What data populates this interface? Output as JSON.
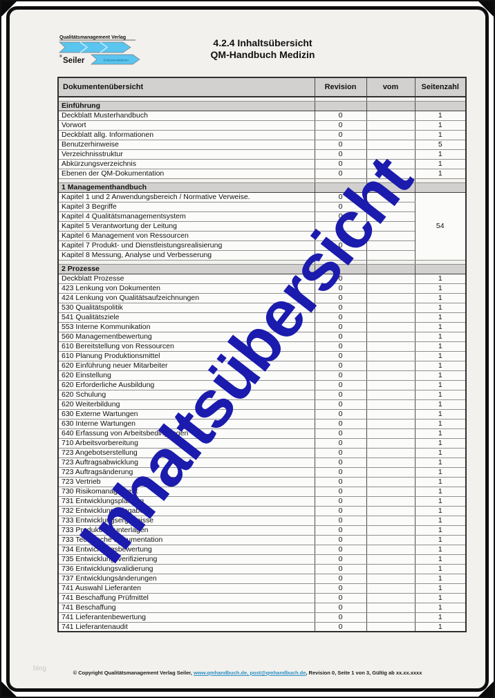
{
  "page": {
    "title_line1": "4.2.4 Inhaltsübersicht",
    "title_line2": "QM-Handbuch Medizin",
    "watermark": "Inhaltsübersicht",
    "blog_label": "blog"
  },
  "logo": {
    "line1": "Qualitätsmanagement Verlag",
    "registered": "®",
    "name": "Seiler",
    "tagline": "Dokumentationen",
    "arrow_color": "#5ac5ef"
  },
  "table": {
    "headers": [
      "Dokumentenübersicht",
      "Revision",
      "vom",
      "Seitenzahl"
    ],
    "sections": [
      {
        "title": "Einführung",
        "rows": [
          [
            "Deckblatt Musterhandbuch",
            "0",
            "",
            "1"
          ],
          [
            "Vorwort",
            "0",
            "",
            "1"
          ],
          [
            "Deckblatt allg. Informationen",
            "0",
            "",
            "1"
          ],
          [
            "Benutzerhinweise",
            "0",
            "",
            "5"
          ],
          [
            "Verzeichnisstruktur",
            "0",
            "",
            "1"
          ],
          [
            "Abkürzungsverzeichnis",
            "0",
            "",
            "1"
          ],
          [
            "Ebenen der QM-Dokumentation",
            "0",
            "",
            "1"
          ]
        ]
      },
      {
        "title": "1 Managementhandbuch",
        "seiten_merged": "54",
        "rows": [
          [
            "Kapitel 1 und 2 Anwendungsbereich / Normative Verweise.",
            "0",
            ""
          ],
          [
            "Kapitel 3 Begriffe",
            "0",
            ""
          ],
          [
            "Kapitel 4 Qualitätsmanagementsystem",
            "0",
            ""
          ],
          [
            "Kapitel 5 Verantwortung der Leitung",
            "0",
            ""
          ],
          [
            "Kapitel 6 Management von Ressourcen",
            "0",
            ""
          ],
          [
            "Kapitel 7 Produkt- und Dienstleistungsrealisierung",
            "0",
            ""
          ],
          [
            "Kapitel 8 Messung, Analyse und Verbesserung",
            "0",
            ""
          ]
        ]
      },
      {
        "title": "2 Prozesse",
        "rows": [
          [
            "Deckblatt Prozesse",
            "0",
            "",
            "1"
          ],
          [
            "423 Lenkung von Dokumenten",
            "0",
            "",
            "1"
          ],
          [
            "424 Lenkung von Qualitätsaufzeichnungen",
            "0",
            "",
            "1"
          ],
          [
            "530 Qualitätspolitik",
            "0",
            "",
            "1"
          ],
          [
            "541 Qualitätsziele",
            "0",
            "",
            "1"
          ],
          [
            "553 Interne Kommunikation",
            "0",
            "",
            "1"
          ],
          [
            "560 Managementbewertung",
            "0",
            "",
            "1"
          ],
          [
            "610 Bereitstellung von Ressourcen",
            "0",
            "",
            "1"
          ],
          [
            "610 Planung Produktionsmittel",
            "0",
            "",
            "1"
          ],
          [
            "620 Einführung neuer Mitarbeiter",
            "0",
            "",
            "1"
          ],
          [
            "620 Einstellung",
            "0",
            "",
            "1"
          ],
          [
            "620 Erforderliche Ausbildung",
            "0",
            "",
            "1"
          ],
          [
            "620 Schulung",
            "0",
            "",
            "1"
          ],
          [
            "620 Weiterbildung",
            "0",
            "",
            "1"
          ],
          [
            "630 Externe Wartungen",
            "0",
            "",
            "1"
          ],
          [
            "630 Interne Wartungen",
            "0",
            "",
            "1"
          ],
          [
            "640 Erfassung von Arbeitsbedingungen",
            "0",
            "",
            "1"
          ],
          [
            "710 Arbeitsvorbereitung",
            "0",
            "",
            "1"
          ],
          [
            "723 Angebotserstellung",
            "0",
            "",
            "1"
          ],
          [
            "723 Auftragsabwicklung",
            "0",
            "",
            "1"
          ],
          [
            "723 Auftragsänderung",
            "0",
            "",
            "1"
          ],
          [
            "723 Vertrieb",
            "0",
            "",
            "1"
          ],
          [
            "730 Risikomanagement",
            "0",
            "",
            "1"
          ],
          [
            "731 Entwicklungsplanung",
            "0",
            "",
            "1"
          ],
          [
            "732 Entwicklungseingaben",
            "0",
            "",
            "1"
          ],
          [
            "733 Entwicklungsergebnisse",
            "0",
            "",
            "1"
          ],
          [
            "733 Produktionsunterlagen",
            "0",
            "",
            "1"
          ],
          [
            "733 Technische Dokumentation",
            "0",
            "",
            "1"
          ],
          [
            "734 Entwicklungsbewertung",
            "0",
            "",
            "1"
          ],
          [
            "735 Entwicklungsverifizierung",
            "0",
            "",
            "1"
          ],
          [
            "736 Entwicklungsvalidierung",
            "0",
            "",
            "1"
          ],
          [
            "737 Entwicklungsänderungen",
            "0",
            "",
            "1"
          ],
          [
            "741 Auswahl Lieferanten",
            "0",
            "",
            "1"
          ],
          [
            "741 Beschaffung Prüfmittel",
            "0",
            "",
            "1"
          ],
          [
            "741 Beschaffung",
            "0",
            "",
            "1"
          ],
          [
            "741 Lieferantenbewertung",
            "0",
            "",
            "1"
          ],
          [
            "741 Lieferantenaudit",
            "0",
            "",
            "1"
          ]
        ]
      }
    ]
  },
  "footer": {
    "prefix": "© Copyright Qualitätsmanagement Verlag Seiler, ",
    "links": "www.qmhandbuch.de, post@qmhandbuch.de",
    "suffix": ", Revision 0, Seite 1 von 3, Gültig ab xx.xx.xxxx"
  },
  "colors": {
    "watermark_blue": "#1b1bae",
    "logo_blue": "#5ac5ef",
    "header_gray": "#d2d1cf",
    "link_blue": "#2d8fc4"
  }
}
